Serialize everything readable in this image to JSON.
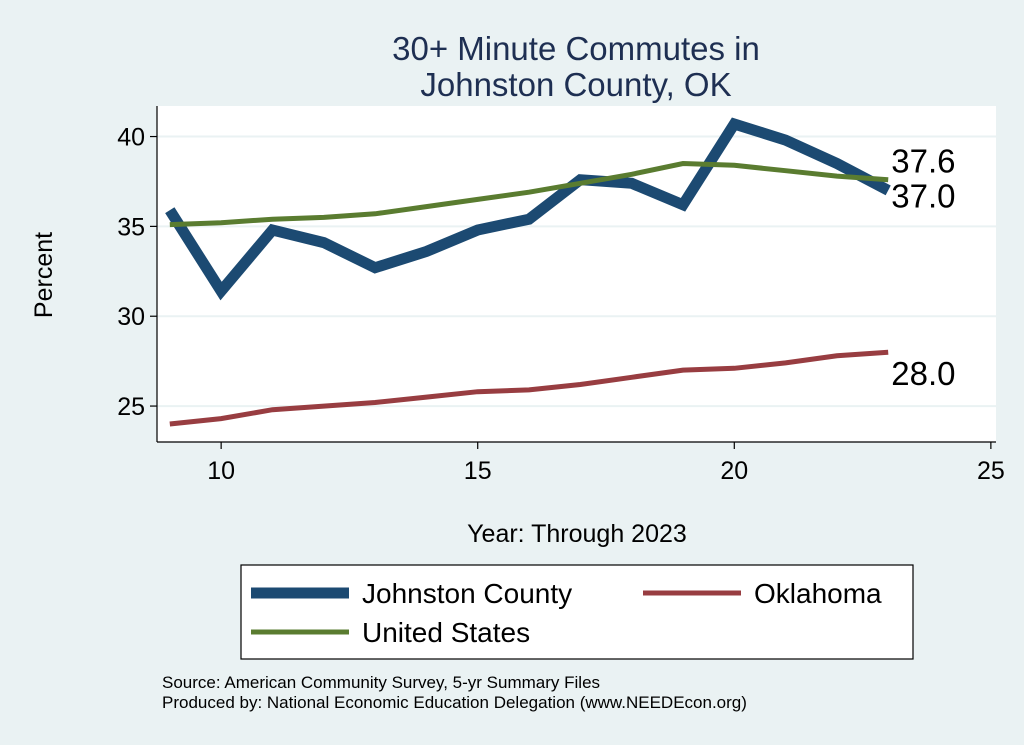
{
  "chart_data": {
    "type": "line",
    "title": [
      "30+ Minute Commutes in",
      "Johnston County, OK"
    ],
    "xlabel": "Year: Through 2023",
    "ylabel": "Percent",
    "xlim": [
      8.75,
      25.1
    ],
    "ylim": [
      23.0,
      41.7
    ],
    "xticks": [
      10,
      15,
      20,
      25
    ],
    "yticks": [
      25,
      30,
      35,
      40
    ],
    "grid": true,
    "legend_position": "bottom",
    "x": [
      9,
      10,
      11,
      12,
      13,
      14,
      15,
      16,
      17,
      18,
      19,
      20,
      21,
      22,
      23
    ],
    "series": [
      {
        "name": "Johnston County",
        "color": "#1c4a72",
        "values": [
          35.9,
          31.4,
          34.8,
          34.1,
          32.7,
          33.6,
          34.8,
          35.4,
          37.6,
          37.4,
          36.2,
          40.7,
          39.8,
          38.5,
          37.0
        ],
        "end_label": "37.0"
      },
      {
        "name": "Oklahoma",
        "color": "#983d41",
        "values": [
          24.0,
          24.3,
          24.8,
          25.0,
          25.2,
          25.5,
          25.8,
          25.9,
          26.2,
          26.6,
          27.0,
          27.1,
          27.4,
          27.8,
          28.0
        ],
        "end_label": "28.0"
      },
      {
        "name": "United States",
        "color": "#5a7c30",
        "values": [
          35.1,
          35.2,
          35.4,
          35.5,
          35.7,
          36.1,
          36.5,
          36.9,
          37.4,
          37.9,
          38.5,
          38.4,
          38.1,
          37.8,
          37.6
        ],
        "end_label": "37.6"
      }
    ]
  },
  "footer": {
    "source": "Source: American Community Survey, 5-yr Summary Files",
    "produced": "Produced by: National Economic Education Delegation (www.NEEDEcon.org)"
  }
}
